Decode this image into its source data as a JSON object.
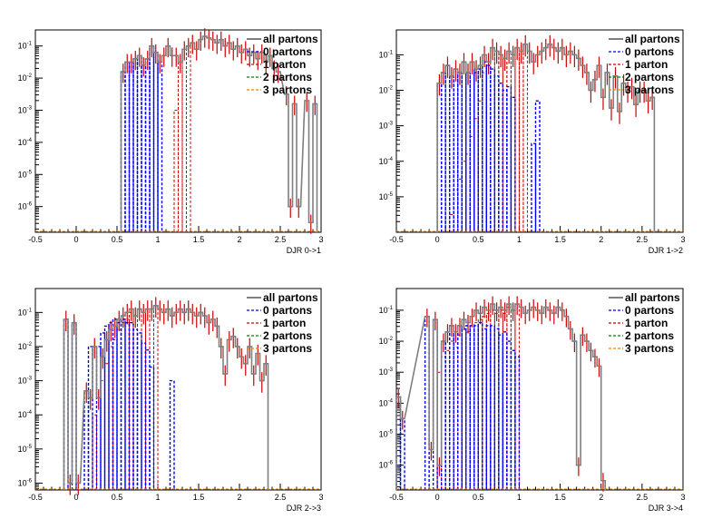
{
  "page": {
    "background": "#ffffff"
  },
  "colors": {
    "all": "#7f7f7f",
    "p0": "#0000ff",
    "p1": "#cc0000",
    "p2": "#007f00",
    "p3": "#ff7f00",
    "err": "#cc0000",
    "frame": "#000000"
  },
  "legend": [
    {
      "key": "all",
      "label": "all partons",
      "color": "#7f7f7f",
      "style": "solid"
    },
    {
      "key": "p0",
      "label": "0 partons",
      "color": "#0000ff",
      "style": "dashed"
    },
    {
      "key": "p1",
      "label": "1 parton",
      "color": "#cc0000",
      "style": "dashed"
    },
    {
      "key": "p2",
      "label": "2 partons",
      "color": "#007f00",
      "style": "dashed"
    },
    {
      "key": "p3",
      "label": "3 partons",
      "color": "#ff7f00",
      "style": "dashed"
    }
  ],
  "chart_data": [
    {
      "type": "histogram",
      "xlabel": "DJR 0->1",
      "xlim": [
        -0.5,
        3
      ],
      "ylim_log10": [
        -6.8,
        -0.5
      ],
      "yscale": "log",
      "xticks": [
        "-0.5",
        "0",
        "0.5",
        "1",
        "1.5",
        "2",
        "2.5",
        "3"
      ],
      "yticks": [
        "10-6",
        "10-5",
        "10-4",
        "10-3",
        "10-2",
        "10-1"
      ],
      "bin_width": 0.05,
      "total_log10": [
        [
          0.55,
          -1.8
        ],
        [
          0.6,
          -1.5
        ],
        [
          0.65,
          -1.5
        ],
        [
          0.7,
          -1.4
        ],
        [
          0.75,
          -1.3
        ],
        [
          0.8,
          -1.6
        ],
        [
          0.85,
          -1.4
        ],
        [
          0.9,
          -1.0
        ],
        [
          0.95,
          -1.2
        ],
        [
          1.0,
          -1.5
        ],
        [
          1.05,
          -1.3
        ],
        [
          1.1,
          -1.0
        ],
        [
          1.15,
          -1.3
        ],
        [
          1.2,
          -1.3
        ],
        [
          1.25,
          -1.5
        ],
        [
          1.3,
          -1.1
        ],
        [
          1.35,
          -1.0
        ],
        [
          1.4,
          -0.9
        ],
        [
          1.45,
          -1.1
        ],
        [
          1.5,
          -0.8
        ],
        [
          1.55,
          -0.7
        ],
        [
          1.6,
          -0.75
        ],
        [
          1.65,
          -0.8
        ],
        [
          1.7,
          -0.9
        ],
        [
          1.75,
          -0.8
        ],
        [
          1.8,
          -1.0
        ],
        [
          1.85,
          -0.9
        ],
        [
          1.9,
          -1.1
        ],
        [
          1.95,
          -1.0
        ],
        [
          2.0,
          -1.2
        ],
        [
          2.05,
          -1.1
        ],
        [
          2.1,
          -1.3
        ],
        [
          2.15,
          -1.2
        ],
        [
          2.2,
          -1.4
        ],
        [
          2.25,
          -1.2
        ],
        [
          2.3,
          -1.5
        ],
        [
          2.35,
          -1.3
        ],
        [
          2.4,
          -1.7
        ],
        [
          2.45,
          -1.8
        ],
        [
          2.55,
          -2.5
        ],
        [
          2.6,
          -6.0
        ],
        [
          2.65,
          -2.8
        ],
        [
          2.7,
          -6.0
        ],
        [
          2.8,
          -2.7
        ],
        [
          2.85,
          -6.5
        ],
        [
          2.9,
          -2.8
        ]
      ],
      "p0_log10": [
        [
          0.55,
          -1.8
        ],
        [
          0.6,
          -1.5
        ],
        [
          0.65,
          -1.5
        ],
        [
          0.7,
          -1.4
        ],
        [
          0.75,
          -1.3
        ],
        [
          0.8,
          -1.6
        ],
        [
          0.85,
          -1.4
        ],
        [
          0.9,
          -1.0
        ],
        [
          0.95,
          -1.2
        ],
        [
          1.0,
          -1.5
        ]
      ],
      "p1_log10": [
        [
          1.2,
          -3.0
        ],
        [
          1.25,
          -1.5
        ],
        [
          1.3,
          -1.1
        ],
        [
          1.35,
          -1.0
        ]
      ]
    },
    {
      "type": "histogram",
      "xlabel": "DJR 1->2",
      "xlim": [
        -0.5,
        3
      ],
      "ylim_log10": [
        -6.0,
        -0.3
      ],
      "yscale": "log",
      "xticks": [
        "-0.5",
        "0",
        "0.5",
        "1",
        "1.5",
        "2",
        "2.5",
        "3"
      ],
      "yticks": [
        "10-5",
        "10-4",
        "10-3",
        "10-2",
        "10-1"
      ],
      "bin_width": 0.05,
      "total_log10": [
        [
          0.0,
          -1.8
        ],
        [
          0.05,
          -1.5
        ],
        [
          0.1,
          -1.3
        ],
        [
          0.15,
          -1.6
        ],
        [
          0.2,
          -1.4
        ],
        [
          0.25,
          -1.5
        ],
        [
          0.3,
          -1.2
        ],
        [
          0.35,
          -1.5
        ],
        [
          0.4,
          -1.2
        ],
        [
          0.45,
          -1.4
        ],
        [
          0.5,
          -1.3
        ],
        [
          0.55,
          -1.0
        ],
        [
          0.6,
          -1.2
        ],
        [
          0.65,
          -0.8
        ],
        [
          0.7,
          -0.9
        ],
        [
          0.75,
          -1.0
        ],
        [
          0.8,
          -1.1
        ],
        [
          0.85,
          -0.9
        ],
        [
          0.9,
          -1.0
        ],
        [
          0.95,
          -0.8
        ],
        [
          1.0,
          -0.9
        ],
        [
          1.05,
          -0.7
        ],
        [
          1.1,
          -0.9
        ],
        [
          1.15,
          -1.2
        ],
        [
          1.2,
          -1.0
        ],
        [
          1.25,
          -0.9
        ],
        [
          1.3,
          -0.8
        ],
        [
          1.35,
          -0.7
        ],
        [
          1.4,
          -0.8
        ],
        [
          1.45,
          -0.9
        ],
        [
          1.5,
          -0.8
        ],
        [
          1.55,
          -1.0
        ],
        [
          1.6,
          -0.9
        ],
        [
          1.65,
          -1.0
        ],
        [
          1.7,
          -1.1
        ],
        [
          1.75,
          -1.3
        ],
        [
          1.8,
          -1.5
        ],
        [
          1.85,
          -2.0
        ],
        [
          1.9,
          -1.7
        ],
        [
          1.95,
          -1.3
        ],
        [
          2.0,
          -2.2
        ],
        [
          2.05,
          -1.5
        ],
        [
          2.1,
          -2.5
        ],
        [
          2.15,
          -1.6
        ],
        [
          2.2,
          -2.6
        ],
        [
          2.25,
          -1.8
        ],
        [
          2.3,
          -2.0
        ],
        [
          2.35,
          -1.9
        ],
        [
          2.4,
          -2.4
        ],
        [
          2.45,
          -2.0
        ],
        [
          2.5,
          -2.0
        ],
        [
          2.55,
          -2.3
        ],
        [
          2.6,
          -2.2
        ]
      ],
      "p0_log10": [
        [
          0.0,
          -1.8
        ],
        [
          0.05,
          -1.5
        ],
        [
          0.1,
          -1.3
        ],
        [
          0.15,
          -1.6
        ],
        [
          0.2,
          -1.4
        ],
        [
          0.25,
          -1.5
        ],
        [
          0.3,
          -1.2
        ],
        [
          0.35,
          -1.5
        ],
        [
          0.4,
          -1.2
        ],
        [
          0.45,
          -1.5
        ],
        [
          0.5,
          -1.4
        ],
        [
          0.55,
          -1.2
        ],
        [
          0.6,
          -1.3
        ],
        [
          0.65,
          -1.4
        ],
        [
          0.7,
          -1.6
        ],
        [
          0.75,
          -1.8
        ],
        [
          0.8,
          -2.0
        ],
        [
          0.85,
          -1.9
        ],
        [
          0.9,
          -2.2
        ],
        [
          1.15,
          -3.5
        ],
        [
          1.2,
          -2.3
        ]
      ],
      "p1_log10": [
        [
          0.15,
          -5.5
        ],
        [
          0.2,
          -4.8
        ],
        [
          0.25,
          -4.5
        ],
        [
          0.3,
          -4.0
        ],
        [
          0.35,
          -3.8
        ],
        [
          0.4,
          -3.3
        ],
        [
          0.45,
          -2.8
        ],
        [
          0.5,
          -2.3
        ],
        [
          0.55,
          -1.5
        ],
        [
          0.6,
          -1.3
        ],
        [
          0.65,
          -0.8
        ],
        [
          0.7,
          -0.9
        ],
        [
          0.75,
          -1.0
        ],
        [
          0.8,
          -1.1
        ],
        [
          0.85,
          -0.9
        ],
        [
          0.9,
          -1.0
        ],
        [
          0.95,
          -0.8
        ],
        [
          1.0,
          -0.9
        ],
        [
          1.05,
          -0.7
        ]
      ]
    },
    {
      "type": "histogram",
      "xlabel": "DJR 2->3",
      "xlim": [
        -0.5,
        3
      ],
      "ylim_log10": [
        -6.2,
        -0.3
      ],
      "yscale": "log",
      "xticks": [
        "-0.5",
        "0",
        "0.5",
        "1",
        "1.5",
        "2",
        "2.5",
        "3"
      ],
      "yticks": [
        "10-6",
        "10-5",
        "10-4",
        "10-3",
        "10-2",
        "10-1"
      ],
      "bin_width": 0.05,
      "total_log10": [
        [
          -0.15,
          -1.2
        ],
        [
          -0.1,
          -6.0
        ],
        [
          -0.05,
          -1.3
        ],
        [
          0.0,
          -6.0
        ],
        [
          0.1,
          -3.3
        ],
        [
          0.15,
          -3.5
        ],
        [
          0.2,
          -2.0
        ],
        [
          0.25,
          -3.5
        ],
        [
          0.3,
          -2.3
        ],
        [
          0.35,
          -1.8
        ],
        [
          0.4,
          -1.5
        ],
        [
          0.45,
          -1.4
        ],
        [
          0.5,
          -1.2
        ],
        [
          0.55,
          -1.1
        ],
        [
          0.6,
          -1.0
        ],
        [
          0.65,
          -0.9
        ],
        [
          0.7,
          -1.1
        ],
        [
          0.75,
          -0.9
        ],
        [
          0.8,
          -1.0
        ],
        [
          0.85,
          -0.9
        ],
        [
          0.9,
          -0.9
        ],
        [
          0.95,
          -0.8
        ],
        [
          1.0,
          -0.9
        ],
        [
          1.05,
          -1.0
        ],
        [
          1.1,
          -0.9
        ],
        [
          1.15,
          -1.1
        ],
        [
          1.2,
          -1.0
        ],
        [
          1.25,
          -0.9
        ],
        [
          1.3,
          -1.0
        ],
        [
          1.35,
          -0.9
        ],
        [
          1.4,
          -1.0
        ],
        [
          1.45,
          -1.1
        ],
        [
          1.5,
          -1.0
        ],
        [
          1.55,
          -1.1
        ],
        [
          1.6,
          -1.3
        ],
        [
          1.65,
          -1.2
        ],
        [
          1.7,
          -1.4
        ],
        [
          1.75,
          -2.0
        ],
        [
          1.8,
          -2.8
        ],
        [
          1.85,
          -1.8
        ],
        [
          1.9,
          -1.7
        ],
        [
          1.95,
          -2.0
        ],
        [
          2.0,
          -2.3
        ],
        [
          2.05,
          -2.5
        ],
        [
          2.1,
          -2.0
        ],
        [
          2.15,
          -2.8
        ],
        [
          2.2,
          -2.2
        ],
        [
          2.25,
          -3.0
        ],
        [
          2.3,
          -2.5
        ]
      ],
      "p0_log10": [
        [
          -0.15,
          -1.2
        ],
        [
          -0.05,
          -1.3
        ],
        [
          0.1,
          -3.3
        ],
        [
          0.15,
          -2.0
        ],
        [
          0.25,
          -2.0
        ],
        [
          0.3,
          -1.6
        ],
        [
          0.35,
          -1.4
        ],
        [
          0.4,
          -1.3
        ],
        [
          0.45,
          -1.2
        ],
        [
          0.5,
          -1.3
        ],
        [
          0.55,
          -1.2
        ],
        [
          0.6,
          -1.3
        ],
        [
          0.65,
          -1.3
        ],
        [
          0.7,
          -1.5
        ],
        [
          0.75,
          -1.6
        ],
        [
          0.8,
          -1.9
        ],
        [
          0.85,
          -2.1
        ],
        [
          0.9,
          -2.6
        ],
        [
          1.15,
          -3.0
        ]
      ],
      "p1_log10": [
        [
          0.2,
          -4.0
        ],
        [
          0.25,
          -3.5
        ],
        [
          0.3,
          -3.0
        ],
        [
          0.35,
          -2.5
        ],
        [
          0.4,
          -2.0
        ],
        [
          0.45,
          -1.8
        ],
        [
          0.5,
          -1.5
        ],
        [
          0.55,
          -1.3
        ],
        [
          0.6,
          -1.2
        ],
        [
          0.65,
          -1.0
        ],
        [
          0.7,
          -1.1
        ],
        [
          0.75,
          -0.9
        ],
        [
          0.8,
          -1.0
        ],
        [
          0.85,
          -0.9
        ],
        [
          0.9,
          -0.9
        ],
        [
          0.95,
          -0.8
        ]
      ]
    },
    {
      "type": "histogram",
      "xlabel": "DJR 3->4",
      "xlim": [
        -0.5,
        3
      ],
      "ylim_log10": [
        -6.8,
        -0.3
      ],
      "yscale": "log",
      "xticks": [
        "-0.5",
        "0",
        "0.5",
        "1",
        "1.5",
        "2",
        "2.5",
        "3"
      ],
      "yticks": [
        "10-6",
        "10-5",
        "10-4",
        "10-3",
        "10-2",
        "10-1"
      ],
      "bin_width": 0.05,
      "total_log10": [
        [
          -0.5,
          -3.8
        ],
        [
          -0.45,
          -4.5
        ],
        [
          -0.15,
          -1.2
        ],
        [
          -0.1,
          -5.5
        ],
        [
          -0.05,
          -1.3
        ],
        [
          0.0,
          -6.0
        ],
        [
          0.05,
          -2.0
        ],
        [
          0.1,
          -1.7
        ],
        [
          0.15,
          -1.5
        ],
        [
          0.2,
          -1.7
        ],
        [
          0.25,
          -1.5
        ],
        [
          0.3,
          -1.3
        ],
        [
          0.35,
          -1.4
        ],
        [
          0.4,
          -1.2
        ],
        [
          0.45,
          -1.0
        ],
        [
          0.5,
          -1.1
        ],
        [
          0.55,
          -0.9
        ],
        [
          0.6,
          -1.0
        ],
        [
          0.65,
          -0.8
        ],
        [
          0.7,
          -1.0
        ],
        [
          0.75,
          -0.9
        ],
        [
          0.8,
          -1.0
        ],
        [
          0.85,
          -0.8
        ],
        [
          0.9,
          -1.0
        ],
        [
          0.95,
          -0.8
        ],
        [
          1.0,
          -0.9
        ],
        [
          1.05,
          -1.1
        ],
        [
          1.1,
          -1.0
        ],
        [
          1.15,
          -0.9
        ],
        [
          1.2,
          -1.0
        ],
        [
          1.25,
          -1.1
        ],
        [
          1.3,
          -0.9
        ],
        [
          1.35,
          -1.0
        ],
        [
          1.4,
          -1.1
        ],
        [
          1.45,
          -0.9
        ],
        [
          1.5,
          -1.0
        ],
        [
          1.55,
          -1.2
        ],
        [
          1.6,
          -1.6
        ],
        [
          1.65,
          -2.0
        ],
        [
          1.7,
          -6.0
        ],
        [
          1.75,
          -1.8
        ],
        [
          1.8,
          -2.0
        ],
        [
          1.85,
          -2.3
        ],
        [
          1.9,
          -2.5
        ],
        [
          1.95,
          -2.8
        ],
        [
          2.0,
          -6.5
        ]
      ],
      "p0_log10": [
        [
          -0.5,
          -3.8
        ],
        [
          -0.45,
          -4.5
        ],
        [
          -0.15,
          -1.2
        ],
        [
          -0.05,
          -1.3
        ],
        [
          0.05,
          -2.0
        ],
        [
          0.1,
          -1.7
        ],
        [
          0.15,
          -1.5
        ],
        [
          0.2,
          -1.7
        ],
        [
          0.25,
          -1.5
        ],
        [
          0.3,
          -1.6
        ],
        [
          0.35,
          -1.5
        ],
        [
          0.4,
          -1.5
        ],
        [
          0.45,
          -1.5
        ],
        [
          0.5,
          -1.4
        ],
        [
          0.55,
          -1.6
        ],
        [
          0.6,
          -1.5
        ],
        [
          0.65,
          -1.5
        ],
        [
          0.7,
          -1.6
        ],
        [
          0.75,
          -1.8
        ],
        [
          0.8,
          -1.7
        ],
        [
          0.85,
          -2.0
        ],
        [
          0.9,
          -2.3
        ],
        [
          0.95,
          -2.5
        ]
      ],
      "p1_log10": [
        [
          0.0,
          -3.0
        ],
        [
          0.05,
          -2.5
        ],
        [
          0.1,
          -2.3
        ],
        [
          0.15,
          -2.0
        ],
        [
          0.2,
          -2.2
        ],
        [
          0.25,
          -1.8
        ],
        [
          0.3,
          -1.6
        ],
        [
          0.35,
          -1.7
        ],
        [
          0.4,
          -1.5
        ],
        [
          0.45,
          -1.4
        ],
        [
          0.5,
          -1.3
        ],
        [
          0.55,
          -1.2
        ],
        [
          0.6,
          -1.1
        ],
        [
          0.65,
          -1.0
        ],
        [
          0.7,
          -1.1
        ],
        [
          0.75,
          -1.0
        ],
        [
          0.8,
          -1.1
        ],
        [
          0.85,
          -0.9
        ],
        [
          0.9,
          -1.0
        ],
        [
          0.95,
          -0.8
        ]
      ]
    }
  ]
}
